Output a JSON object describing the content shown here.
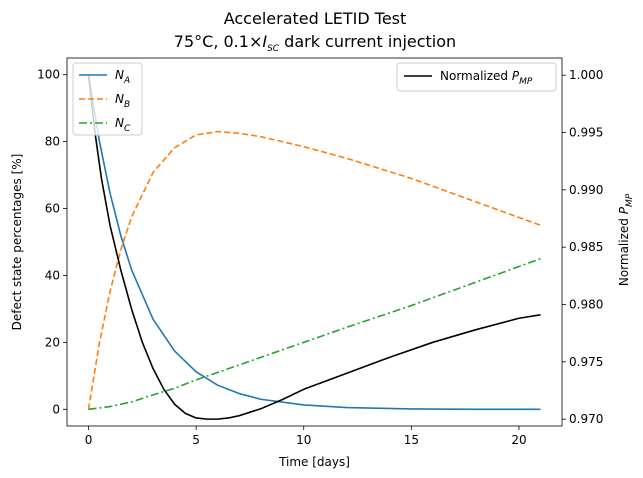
{
  "chart_data": {
    "type": "line",
    "title": {
      "line1": "Accelerated LETID Test",
      "line2_prefix": "75°C, 0.1×",
      "line2_var": "I",
      "line2_sub": "SC",
      "line2_suffix": " dark current injection"
    },
    "xlabel": "Time [days]",
    "ylabel_left": "Defect state percentages [%]",
    "ylabel_right": {
      "text": "Normalized ",
      "var": "P",
      "sub": "MP"
    },
    "xlim": [
      -1,
      22
    ],
    "ylim_left": [
      -5,
      105
    ],
    "ylim_right": [
      0.9694,
      1.0015
    ],
    "xticks": [
      0,
      5,
      10,
      15,
      20
    ],
    "yticks_left": [
      0,
      20,
      40,
      60,
      80,
      100
    ],
    "yticks_right": [
      0.97,
      0.975,
      0.98,
      0.985,
      0.99,
      0.995,
      1.0
    ],
    "grid": false,
    "legend_left": {
      "placement": "upper-left"
    },
    "legend_right": {
      "placement": "upper-right"
    },
    "series": [
      {
        "name": {
          "var": "N",
          "sub": "A"
        },
        "axis": "left",
        "color": "#1f77b4",
        "dash": "solid",
        "x": [
          0,
          0.5,
          1,
          1.5,
          2,
          3,
          4,
          5,
          6,
          7,
          8,
          10,
          12,
          15,
          18,
          21
        ],
        "y": [
          100,
          80.3,
          64.6,
          51.9,
          41.7,
          26.9,
          17.4,
          11.2,
          7.2,
          4.7,
          3.0,
          1.3,
          0.5,
          0.1,
          0.0,
          0.0
        ]
      },
      {
        "name": {
          "var": "N",
          "sub": "B"
        },
        "axis": "left",
        "color": "#ff7f0e",
        "dash": "dashed",
        "x": [
          0,
          0.5,
          1,
          1.5,
          2,
          3,
          4,
          5,
          6,
          7,
          8,
          10,
          12,
          15,
          18,
          21
        ],
        "y": [
          0,
          19.6,
          35.2,
          47.7,
          57.5,
          70.8,
          78.2,
          82.0,
          83.0,
          82.5,
          81.5,
          78.5,
          75.0,
          69.0,
          62.0,
          55.0
        ]
      },
      {
        "name": {
          "var": "N",
          "sub": "C"
        },
        "axis": "left",
        "color": "#2ca02c",
        "dash": "dashdot",
        "x": [
          0,
          1,
          2,
          3,
          4,
          5,
          6,
          8,
          10,
          12,
          15,
          18,
          21
        ],
        "y": [
          0,
          0.8,
          2.2,
          4.3,
          6.3,
          8.8,
          11.0,
          15.5,
          20.0,
          24.5,
          31.0,
          38.0,
          45.0
        ]
      },
      {
        "name": {
          "text": "Normalized ",
          "var": "P",
          "sub": "MP"
        },
        "axis": "right",
        "color": "#000000",
        "dash": "solid",
        "x": [
          0,
          0.3,
          0.6,
          1,
          1.5,
          2,
          2.5,
          3,
          3.5,
          4,
          4.5,
          5,
          5.5,
          6,
          6.5,
          7,
          8,
          9,
          10,
          12,
          14,
          16,
          18,
          20,
          21
        ],
        "y": [
          1.0,
          0.995,
          0.991,
          0.9869,
          0.983,
          0.9796,
          0.9767,
          0.9744,
          0.9726,
          0.9713,
          0.9705,
          0.9701,
          0.97,
          0.97,
          0.9701,
          0.9703,
          0.9709,
          0.9717,
          0.9726,
          0.974,
          0.9754,
          0.9767,
          0.9778,
          0.9788,
          0.9791
        ]
      }
    ]
  }
}
